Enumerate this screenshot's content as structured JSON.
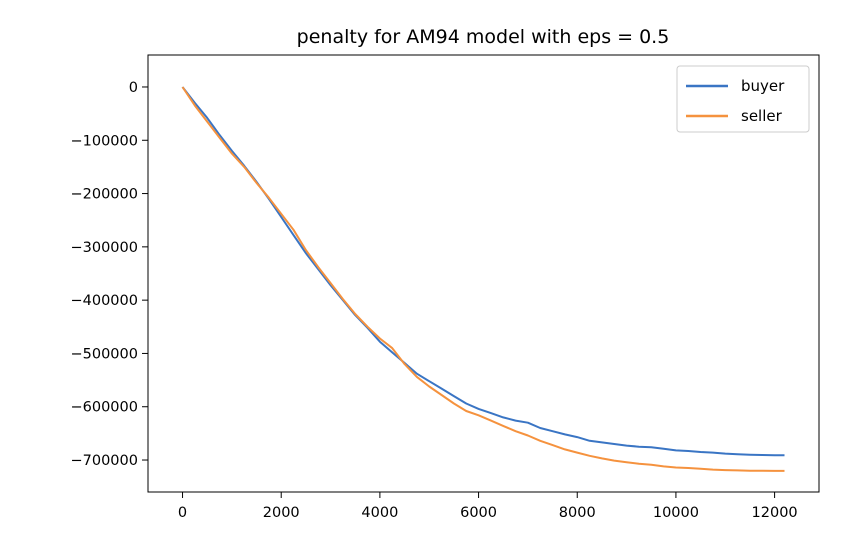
{
  "chart_data": {
    "type": "line",
    "title": "penalty for AM94 model with eps = 0.5",
    "xlabel": "",
    "ylabel": "",
    "xlim": [
      -700,
      12900
    ],
    "ylim": [
      -760000,
      60000
    ],
    "xticks": [
      0,
      2000,
      4000,
      6000,
      8000,
      10000,
      12000
    ],
    "yticks": [
      0,
      -100000,
      -200000,
      -300000,
      -400000,
      -500000,
      -600000,
      -700000
    ],
    "xtick_labels": [
      "0",
      "2000",
      "4000",
      "6000",
      "8000",
      "10000",
      "12000"
    ],
    "ytick_labels": [
      "0",
      "−100000",
      "−200000",
      "−300000",
      "−400000",
      "−500000",
      "−600000",
      "−700000"
    ],
    "grid": false,
    "legend_position": "top-right",
    "series": [
      {
        "name": "buyer",
        "color": "#3a75c4",
        "x": [
          0,
          250,
          500,
          750,
          1000,
          1250,
          1500,
          1750,
          2000,
          2250,
          2500,
          2750,
          3000,
          3250,
          3500,
          3750,
          4000,
          4250,
          4500,
          4750,
          5000,
          5250,
          5500,
          5750,
          6000,
          6250,
          6500,
          6750,
          7000,
          7250,
          7500,
          7750,
          8000,
          8250,
          8500,
          8750,
          9000,
          9250,
          9500,
          9750,
          10000,
          10250,
          10500,
          10750,
          11000,
          11250,
          11500,
          11750,
          12000,
          12200
        ],
        "y": [
          0,
          -30000,
          -58000,
          -90000,
          -120000,
          -148000,
          -178000,
          -210000,
          -244000,
          -278000,
          -312000,
          -342000,
          -372000,
          -400000,
          -428000,
          -452000,
          -478000,
          -498000,
          -518000,
          -538000,
          -552000,
          -566000,
          -580000,
          -594000,
          -604000,
          -612000,
          -620000,
          -626000,
          -630000,
          -640000,
          -646000,
          -652000,
          -657000,
          -664000,
          -667000,
          -670000,
          -673000,
          -675000,
          -676000,
          -679000,
          -682000,
          -683000,
          -685000,
          -686000,
          -688000,
          -689000,
          -690000,
          -690500,
          -691000,
          -691000
        ]
      },
      {
        "name": "seller",
        "color": "#f5923e",
        "x": [
          0,
          250,
          500,
          750,
          1000,
          1250,
          1500,
          1750,
          2000,
          2250,
          2500,
          2750,
          3000,
          3250,
          3500,
          3750,
          4000,
          4250,
          4500,
          4750,
          5000,
          5250,
          5500,
          5750,
          6000,
          6250,
          6500,
          6750,
          7000,
          7250,
          7500,
          7750,
          8000,
          8250,
          8500,
          8750,
          9000,
          9250,
          9500,
          9750,
          10000,
          10250,
          10500,
          10750,
          11000,
          11250,
          11500,
          11750,
          12000,
          12200
        ],
        "y": [
          0,
          -35000,
          -65000,
          -95000,
          -125000,
          -150000,
          -180000,
          -208000,
          -238000,
          -268000,
          -306000,
          -338000,
          -368000,
          -398000,
          -426000,
          -450000,
          -472000,
          -490000,
          -520000,
          -544000,
          -562000,
          -578000,
          -594000,
          -608000,
          -616000,
          -626000,
          -636000,
          -646000,
          -654000,
          -664000,
          -672000,
          -680000,
          -686000,
          -692000,
          -697000,
          -701000,
          -704000,
          -707000,
          -709000,
          -712000,
          -714000,
          -715000,
          -716500,
          -718000,
          -719000,
          -719500,
          -720000,
          -720000,
          -720500,
          -720500
        ]
      }
    ]
  }
}
